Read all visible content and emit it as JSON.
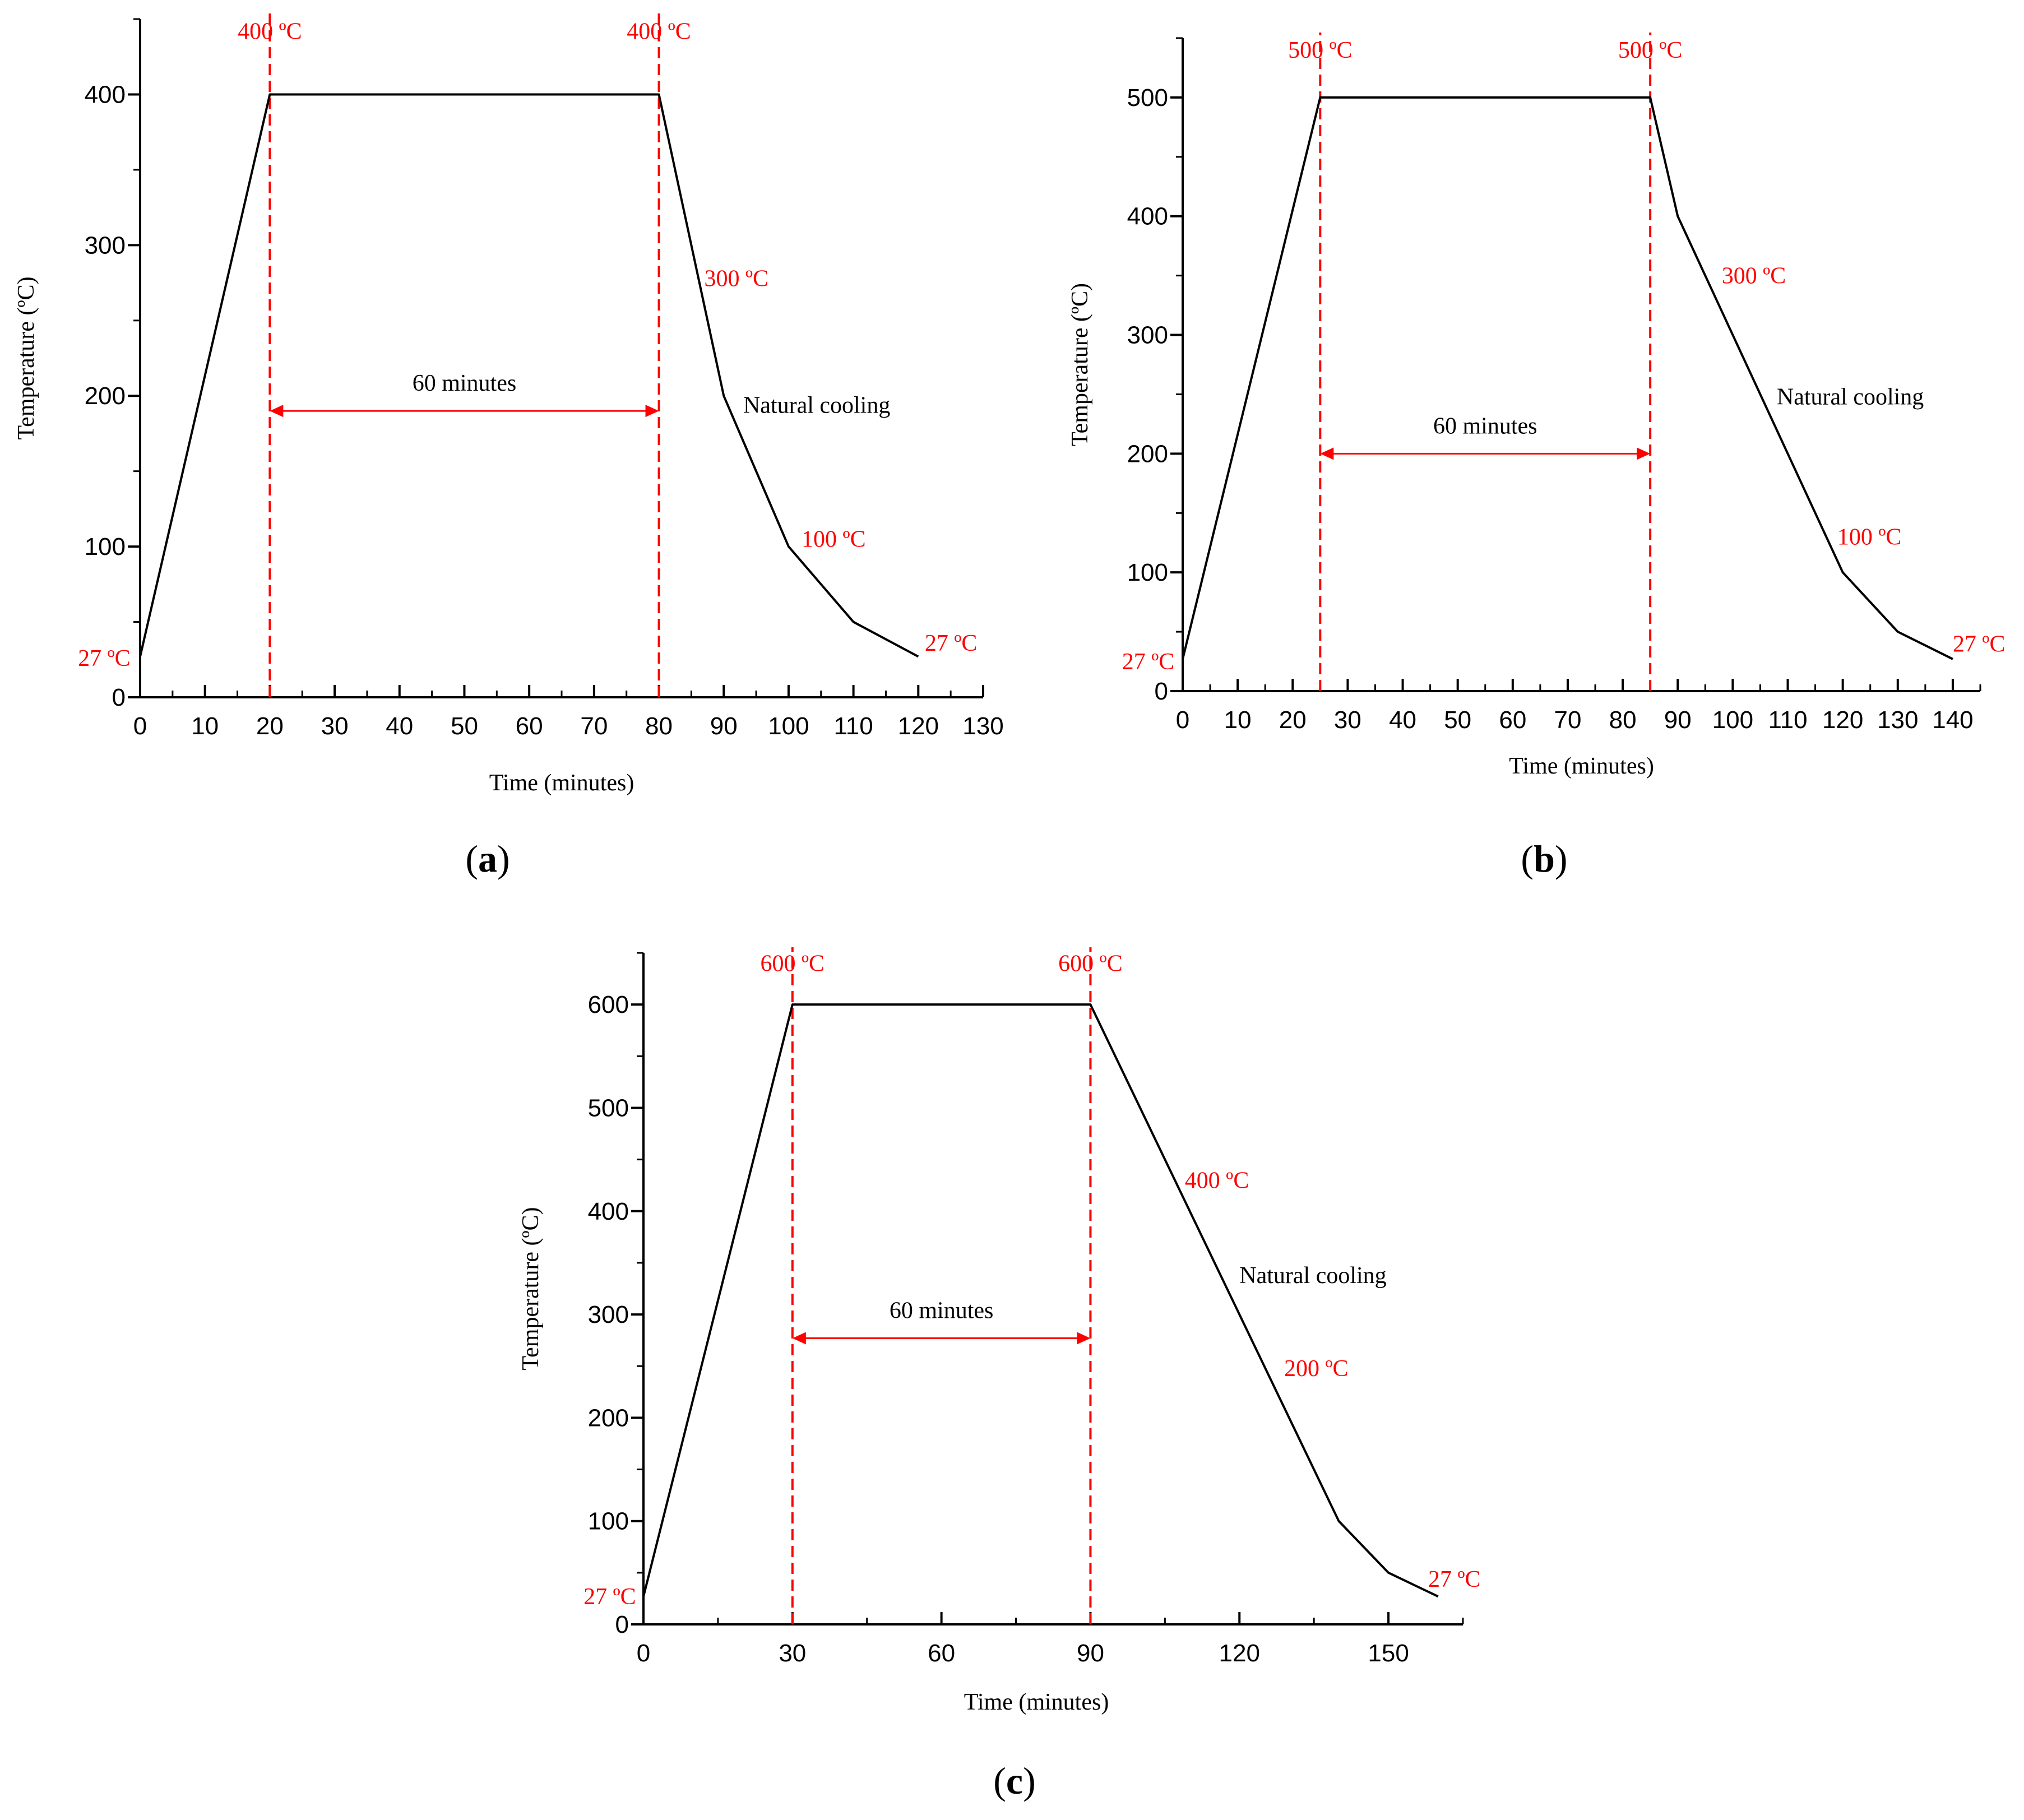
{
  "colors": {
    "annotation": "#ff0000",
    "line": "#000000",
    "axis": "#000000"
  },
  "chart_data": [
    {
      "id": "a",
      "type": "line",
      "panel_label": "a",
      "xlabel": "Time (minutes)",
      "ylabel": "Temperature (ºC)",
      "xlim": [
        0,
        130
      ],
      "ylim": [
        0,
        450
      ],
      "xticks": [
        0,
        10,
        20,
        30,
        40,
        50,
        60,
        70,
        80,
        90,
        100,
        110,
        120,
        130
      ],
      "yticks": [
        0,
        100,
        200,
        300,
        400
      ],
      "series": [
        {
          "name": "temperature",
          "x": [
            0,
            20,
            80,
            90,
            100,
            110,
            120
          ],
          "y": [
            27,
            400,
            400,
            200,
            100,
            50,
            27
          ]
        }
      ],
      "vlines": [
        20,
        80
      ],
      "span": {
        "x1": 20,
        "x2": 80,
        "y": 190,
        "label": "60 minutes"
      },
      "annotations": [
        {
          "text": "400 ºC",
          "x": 20,
          "y": 442,
          "color": "red",
          "anchor": "middle"
        },
        {
          "text": "400 ºC",
          "x": 80,
          "y": 442,
          "color": "red",
          "anchor": "middle"
        },
        {
          "text": "300 ºC",
          "x": 87,
          "y": 278,
          "color": "red",
          "anchor": "start"
        },
        {
          "text": "Natural cooling",
          "x": 93,
          "y": 194,
          "color": "black",
          "anchor": "start"
        },
        {
          "text": "100 ºC",
          "x": 102,
          "y": 105,
          "color": "red",
          "anchor": "start"
        },
        {
          "text": "27 ºC",
          "x": 121,
          "y": 36,
          "color": "red",
          "anchor": "start"
        },
        {
          "text": "27 ºC",
          "x": -1.5,
          "y": 26,
          "color": "red",
          "anchor": "end"
        }
      ]
    },
    {
      "id": "b",
      "type": "line",
      "panel_label": "b",
      "xlabel": "Time (minutes)",
      "ylabel": "Temperature (ºC)",
      "xlim": [
        0,
        145
      ],
      "ylim": [
        0,
        550
      ],
      "xticks": [
        0,
        10,
        20,
        30,
        40,
        50,
        60,
        70,
        80,
        90,
        100,
        110,
        120,
        130,
        140
      ],
      "yticks": [
        0,
        100,
        200,
        300,
        400,
        500
      ],
      "series": [
        {
          "name": "temperature",
          "x": [
            0,
            25,
            85,
            90,
            120,
            130,
            140
          ],
          "y": [
            27,
            500,
            500,
            400,
            100,
            50,
            27
          ]
        }
      ],
      "vlines": [
        25,
        85
      ],
      "span": {
        "x1": 25,
        "x2": 85,
        "y": 200,
        "label": "60 minutes"
      },
      "annotations": [
        {
          "text": "500 ºC",
          "x": 25,
          "y": 540,
          "color": "red",
          "anchor": "middle"
        },
        {
          "text": "500 ºC",
          "x": 85,
          "y": 540,
          "color": "red",
          "anchor": "middle"
        },
        {
          "text": "300 ºC",
          "x": 98,
          "y": 350,
          "color": "red",
          "anchor": "start"
        },
        {
          "text": "Natural cooling",
          "x": 108,
          "y": 248,
          "color": "black",
          "anchor": "start"
        },
        {
          "text": "100 ºC",
          "x": 119,
          "y": 130,
          "color": "red",
          "anchor": "start"
        },
        {
          "text": "27 ºC",
          "x": 140,
          "y": 40,
          "color": "red",
          "anchor": "start"
        },
        {
          "text": "27 ºC",
          "x": -1.5,
          "y": 25,
          "color": "red",
          "anchor": "end"
        }
      ]
    },
    {
      "id": "c",
      "type": "line",
      "panel_label": "c",
      "xlabel": "Time (minutes)",
      "ylabel": "Temperature (ºC)",
      "xlim": [
        0,
        165
      ],
      "ylim": [
        0,
        650
      ],
      "xticks": [
        0,
        30,
        60,
        90,
        120,
        150
      ],
      "yticks": [
        0,
        100,
        200,
        300,
        400,
        500,
        600
      ],
      "series": [
        {
          "name": "temperature",
          "x": [
            0,
            30,
            90,
            140,
            150,
            160
          ],
          "y": [
            27,
            600,
            600,
            100,
            50,
            27
          ]
        }
      ],
      "vlines": [
        30,
        90
      ],
      "span": {
        "x1": 30,
        "x2": 90,
        "y": 277,
        "label": "60 minutes"
      },
      "annotations": [
        {
          "text": "600 ºC",
          "x": 30,
          "y": 640,
          "color": "red",
          "anchor": "middle"
        },
        {
          "text": "600 ºC",
          "x": 90,
          "y": 640,
          "color": "red",
          "anchor": "middle"
        },
        {
          "text": "400 ºC",
          "x": 109,
          "y": 430,
          "color": "red",
          "anchor": "start"
        },
        {
          "text": "Natural cooling",
          "x": 120,
          "y": 338,
          "color": "black",
          "anchor": "start"
        },
        {
          "text": "200 ºC",
          "x": 129,
          "y": 248,
          "color": "red",
          "anchor": "start"
        },
        {
          "text": "27 ºC",
          "x": 158,
          "y": 44,
          "color": "red",
          "anchor": "start"
        },
        {
          "text": "27 ºC",
          "x": -1.5,
          "y": 27,
          "color": "red",
          "anchor": "end"
        }
      ]
    }
  ]
}
